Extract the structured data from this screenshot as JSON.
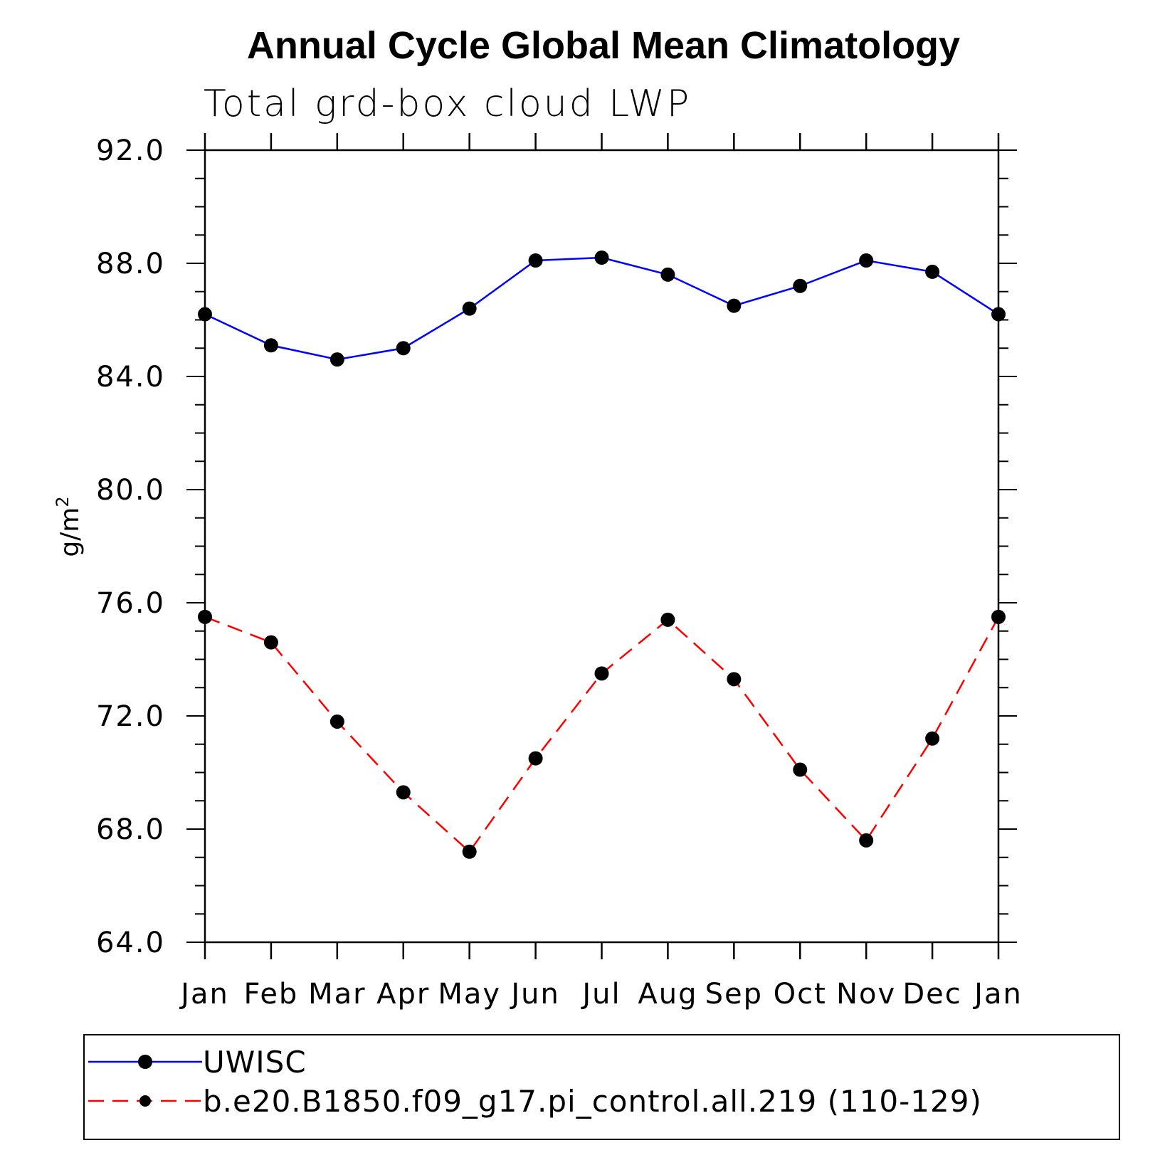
{
  "chart_data": {
    "type": "line",
    "title": "Annual Cycle Global Mean Climatology",
    "subtitle": "Total grd-box cloud LWP",
    "ylabel_base": "g/m",
    "ylabel_sup": "2",
    "xlabel": "",
    "categories": [
      "Jan",
      "Feb",
      "Mar",
      "Apr",
      "May",
      "Jun",
      "Jul",
      "Aug",
      "Sep",
      "Oct",
      "Nov",
      "Dec",
      "Jan"
    ],
    "ylim": [
      64.0,
      92.0
    ],
    "yticks": [
      "64.0",
      "68.0",
      "72.0",
      "76.0",
      "80.0",
      "84.0",
      "88.0",
      "92.0"
    ],
    "series": [
      {
        "name": "UWISC",
        "color": "#0000ff",
        "dashed": false,
        "values": [
          86.2,
          85.1,
          84.6,
          85.0,
          86.4,
          88.1,
          88.2,
          87.6,
          86.5,
          87.2,
          88.1,
          87.7,
          86.2
        ]
      },
      {
        "name": "b.e20.B1850.f09_g17.pi_control.all.219 (110-129)",
        "color": "#ff0000",
        "dashed": true,
        "values": [
          75.5,
          74.6,
          71.8,
          69.3,
          67.2,
          70.5,
          73.5,
          75.4,
          73.3,
          70.1,
          67.6,
          71.2,
          75.5
        ]
      }
    ],
    "legend_location": "bottom"
  }
}
